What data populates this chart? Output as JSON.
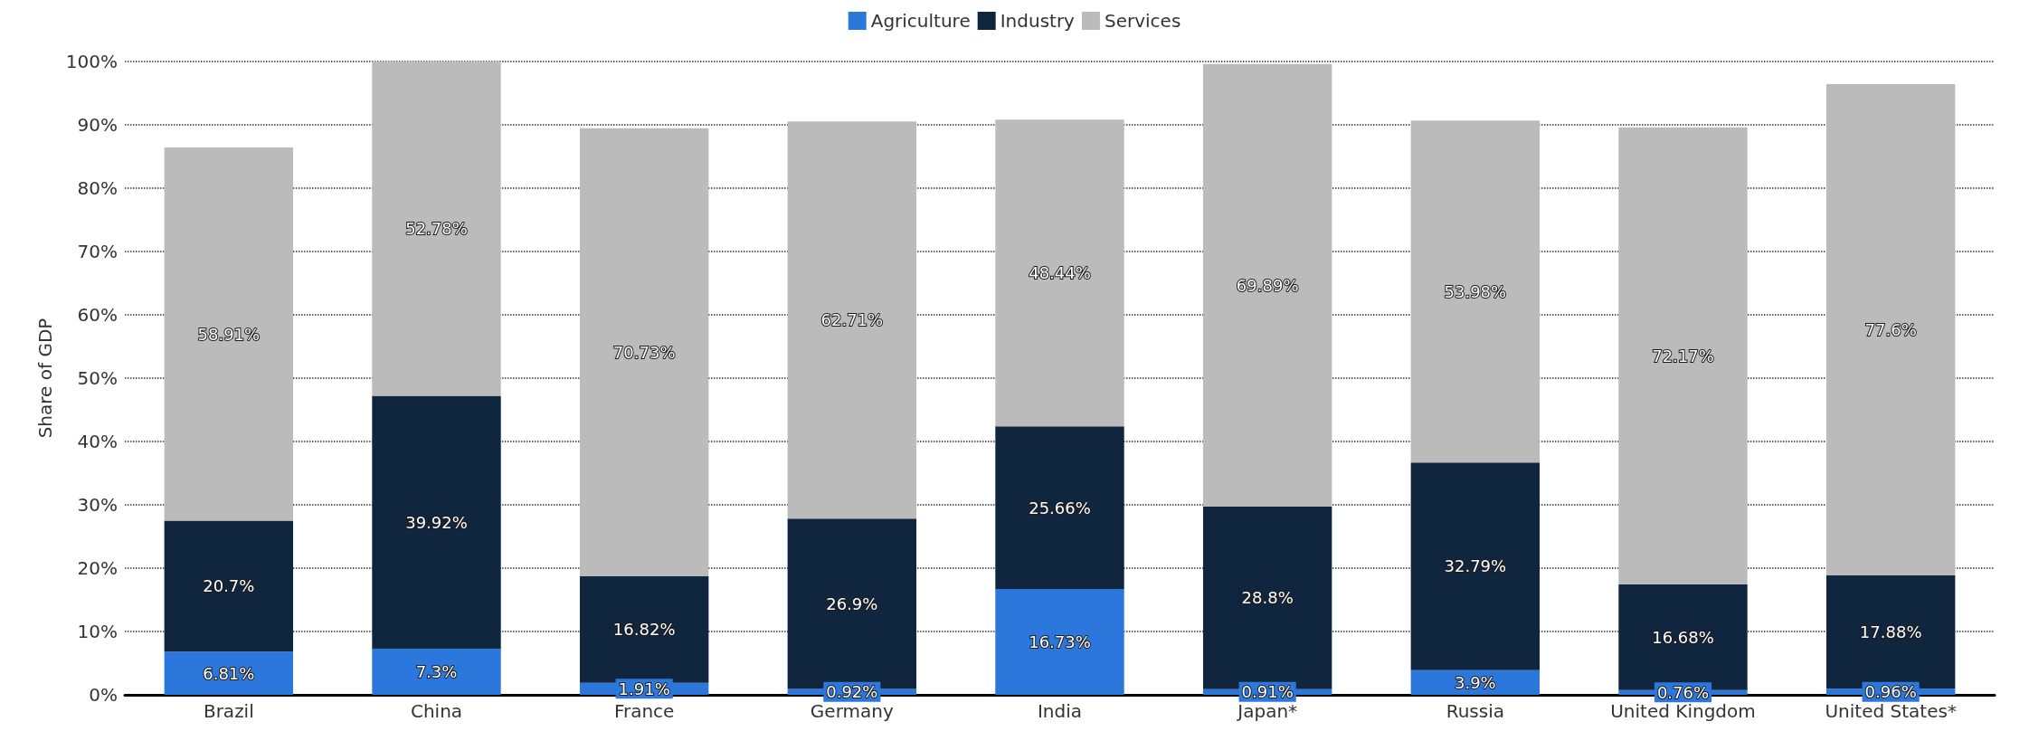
{
  "chart_data": {
    "type": "bar",
    "stacked": true,
    "ylabel": "Share of GDP",
    "categories": [
      "Brazil",
      "China",
      "France",
      "Germany",
      "India",
      "Japan*",
      "Russia",
      "United Kingdom",
      "United States*"
    ],
    "series": [
      {
        "name": "Agriculture",
        "color": "#2b77dc",
        "values": [
          6.81,
          7.3,
          1.91,
          0.92,
          16.73,
          0.91,
          3.9,
          0.76,
          0.96
        ],
        "value_labels": [
          "6.81%",
          "7.3%",
          "1.91%",
          "0.92%",
          "16.73%",
          "0.91%",
          "3.9%",
          "0.76%",
          "0.96%"
        ]
      },
      {
        "name": "Industry",
        "color": "#10263f",
        "values": [
          20.7,
          39.92,
          16.82,
          26.9,
          25.66,
          28.8,
          32.79,
          16.68,
          17.88
        ],
        "value_labels": [
          "20.7%",
          "39.92%",
          "16.82%",
          "26.9%",
          "25.66%",
          "28.8%",
          "32.79%",
          "16.68%",
          "17.88%"
        ]
      },
      {
        "name": "Services",
        "color": "#bbbbbb",
        "values": [
          58.91,
          52.78,
          70.73,
          62.71,
          48.44,
          69.89,
          53.98,
          72.17,
          77.6
        ],
        "value_labels": [
          "58.91%",
          "52.78%",
          "70.73%",
          "62.71%",
          "48.44%",
          "69.89%",
          "53.98%",
          "72.17%",
          "77.6%"
        ]
      }
    ],
    "ylim": [
      0,
      100
    ],
    "yticks": [
      {
        "value": 0,
        "label": "0%"
      },
      {
        "value": 10,
        "label": "10%"
      },
      {
        "value": 20,
        "label": "20%"
      },
      {
        "value": 30,
        "label": "30%"
      },
      {
        "value": 40,
        "label": "40%"
      },
      {
        "value": 50,
        "label": "50%"
      },
      {
        "value": 60,
        "label": "60%"
      },
      {
        "value": 70,
        "label": "70%"
      },
      {
        "value": 80,
        "label": "80%"
      },
      {
        "value": 90,
        "label": "90%"
      },
      {
        "value": 100,
        "label": "100%"
      }
    ],
    "grid": "y",
    "legend": "top"
  }
}
